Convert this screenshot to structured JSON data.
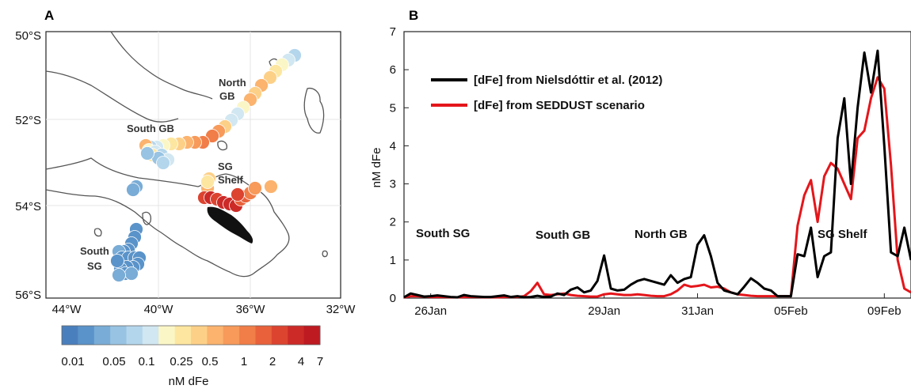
{
  "panels": {
    "a": "A",
    "b": "B"
  },
  "map": {
    "lat_ticks": [
      "50°S",
      "52°S",
      "54°S",
      "56°S"
    ],
    "lon_ticks": [
      "44°W",
      "40°W",
      "36°W",
      "32°W"
    ],
    "labels": {
      "north_gb_1": "North",
      "north_gb_2": "GB",
      "south_gb": "South GB",
      "sg_shelf_1": "SG",
      "sg_shelf_2": "Shelf",
      "south_sg_1": "South",
      "south_sg_2": "SG"
    },
    "colorbar": {
      "tick_labels": [
        "0.01",
        "0.05",
        "0.1",
        "0.25",
        "0.5",
        "1",
        "2",
        "4",
        "7"
      ],
      "label": "nM dFe",
      "colors": [
        "#4a7fbd",
        "#5a93c9",
        "#79acd6",
        "#98c3e2",
        "#b4d6ec",
        "#d1e7f1",
        "#fbf6c6",
        "#fde6a0",
        "#fdd088",
        "#fbb36e",
        "#f79a5a",
        "#f17d48",
        "#e8613b",
        "#dc4430",
        "#cc2a27",
        "#bd1a22"
      ]
    }
  },
  "chart_data": {
    "type": "line",
    "ylabel": "nM dFe",
    "ylim": [
      0,
      7
    ],
    "y_ticks": [
      "0",
      "1",
      "2",
      "3",
      "4",
      "5",
      "6",
      "7"
    ],
    "x_ticks": [
      "26Jan",
      "29Jan",
      "31Jan",
      "05Feb",
      "09Feb"
    ],
    "region_labels": [
      "South SG",
      "South GB",
      "North GB",
      "SG Shelf"
    ],
    "legend_position": "top-left",
    "series": [
      {
        "name": "[dFe] from Nielsdóttir et al. (2012)",
        "color": "#000000",
        "values": [
          0.02,
          0.12,
          0.08,
          0.04,
          0.05,
          0.07,
          0.05,
          0.03,
          0.02,
          0.08,
          0.05,
          0.04,
          0.03,
          0.03,
          0.05,
          0.07,
          0.03,
          0.05,
          0.02,
          0.03,
          0.06,
          0.03,
          0.04,
          0.12,
          0.08,
          0.22,
          0.28,
          0.15,
          0.2,
          0.45,
          1.12,
          0.25,
          0.2,
          0.22,
          0.35,
          0.45,
          0.5,
          0.45,
          0.4,
          0.35,
          0.6,
          0.4,
          0.5,
          0.55,
          1.4,
          1.65,
          1.1,
          0.4,
          0.2,
          0.15,
          0.1,
          0.3,
          0.52,
          0.4,
          0.25,
          0.2,
          0.05,
          0.05,
          0.05,
          1.15,
          1.1,
          1.85,
          0.55,
          1.1,
          1.2,
          4.2,
          5.25,
          3.0,
          5.0,
          6.45,
          5.4,
          6.5,
          4.0,
          1.2,
          1.1,
          1.85,
          1.0
        ]
      },
      {
        "name": "[dFe] from SEDDUST scenario",
        "color": "#e4161b",
        "values": [
          0.02,
          0.05,
          0.05,
          0.04,
          0.03,
          0.03,
          0.03,
          0.02,
          0.02,
          0.03,
          0.03,
          0.03,
          0.02,
          0.02,
          0.02,
          0.03,
          0.03,
          0.03,
          0.05,
          0.18,
          0.4,
          0.1,
          0.08,
          0.1,
          0.12,
          0.08,
          0.06,
          0.05,
          0.04,
          0.04,
          0.1,
          0.12,
          0.1,
          0.08,
          0.08,
          0.1,
          0.08,
          0.06,
          0.05,
          0.05,
          0.1,
          0.2,
          0.35,
          0.3,
          0.32,
          0.35,
          0.28,
          0.3,
          0.25,
          0.15,
          0.1,
          0.08,
          0.06,
          0.05,
          0.05,
          0.05,
          0.05,
          0.05,
          0.05,
          1.9,
          2.7,
          3.1,
          2.0,
          3.2,
          3.55,
          3.4,
          3.0,
          2.6,
          4.2,
          4.4,
          5.25,
          5.8,
          5.5,
          3.5,
          1.0,
          0.25,
          0.15
        ]
      }
    ]
  }
}
